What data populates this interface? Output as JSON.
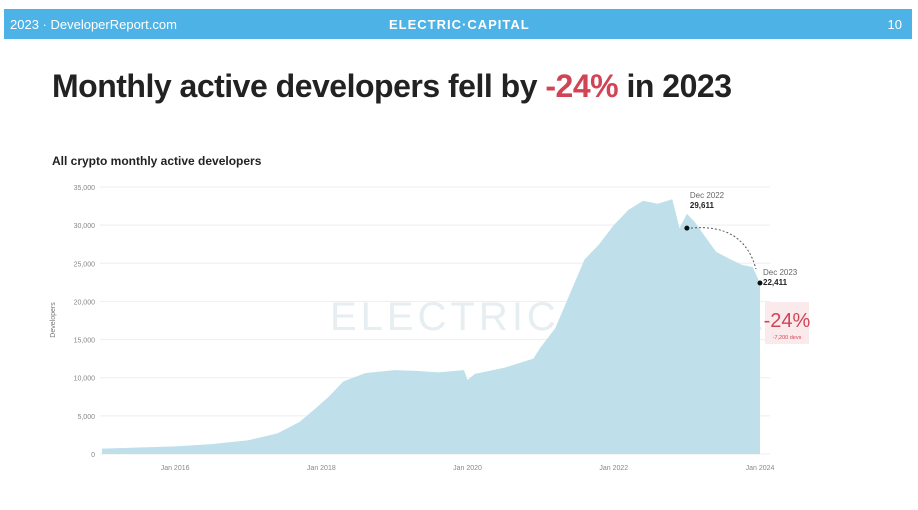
{
  "header": {
    "left": "2023 · DeveloperReport.com",
    "center": "ELECTRIC·CAPITAL",
    "page": "10"
  },
  "title": {
    "prefix": "Monthly active developers fell by ",
    "highlight": "-24%",
    "suffix": " in 2023"
  },
  "colors": {
    "header": "#4db3e6",
    "area": "#bfe0ea",
    "accent": "#d04456"
  },
  "chart_data": {
    "type": "area",
    "title": "All crypto monthly active developers",
    "xlabel": "",
    "ylabel": "Developers",
    "ylim": [
      0,
      35000
    ],
    "xlim": [
      2015.0,
      2024.0
    ],
    "yticks": [
      0,
      5000,
      10000,
      15000,
      20000,
      25000,
      30000,
      35000
    ],
    "ytick_labels": [
      "0",
      "5,000",
      "10,000",
      "15,000",
      "20,000",
      "25,000",
      "30,000",
      "35,000"
    ],
    "xticks": [
      2016,
      2018,
      2020,
      2022,
      2024
    ],
    "xtick_labels": [
      "Jan 2016",
      "Jan 2018",
      "Jan 2020",
      "Jan 2022",
      "Jan 2024"
    ],
    "watermark": "ELECTRIC CAPITAL",
    "series": [
      {
        "name": "Monthly active developers",
        "x": [
          2015.0,
          2015.5,
          2016.0,
          2016.5,
          2017.0,
          2017.4,
          2017.7,
          2017.9,
          2018.1,
          2018.3,
          2018.6,
          2019.0,
          2019.3,
          2019.6,
          2019.95,
          2020.0,
          2020.1,
          2020.5,
          2020.9,
          2021.0,
          2021.2,
          2021.4,
          2021.6,
          2021.8,
          2022.0,
          2022.2,
          2022.4,
          2022.6,
          2022.8,
          2022.9,
          2023.0,
          2023.1,
          2023.25,
          2023.4,
          2023.6,
          2023.75,
          2023.9,
          2024.0
        ],
        "y": [
          700,
          850,
          1000,
          1300,
          1800,
          2700,
          4200,
          5800,
          7500,
          9500,
          10600,
          11000,
          10900,
          10700,
          11000,
          9700,
          10500,
          11300,
          12500,
          14000,
          16500,
          21000,
          25500,
          27500,
          30000,
          32000,
          33200,
          32800,
          33400,
          29611,
          31500,
          30500,
          28500,
          26500,
          25500,
          24800,
          24500,
          22411
        ]
      }
    ],
    "annotations": [
      {
        "label": "Dec 2022",
        "value": "29,611",
        "x": 2023.0,
        "y": 29611
      },
      {
        "label": "Dec 2023",
        "value": "22,411",
        "x": 2024.0,
        "y": 22411
      }
    ],
    "change": {
      "pct": "-24%",
      "delta": "-7,200 devs"
    }
  }
}
